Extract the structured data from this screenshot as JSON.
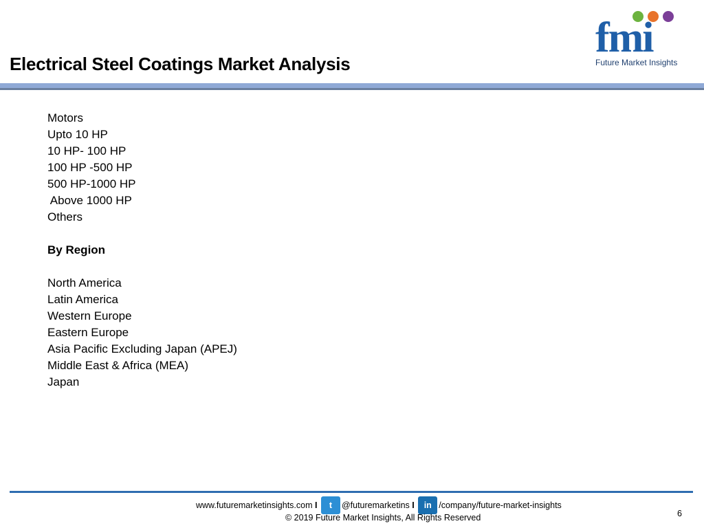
{
  "header": {
    "title": "Electrical Steel Coatings Market Analysis"
  },
  "logo": {
    "mark": "fmi",
    "name": "Future Market Insights"
  },
  "content": {
    "motors": [
      "Motors",
      "Upto 10 HP",
      "10 HP- 100 HP",
      "100 HP -500 HP",
      "500 HP-1000 HP",
      " Above 1000 HP",
      "Others"
    ],
    "region_heading": "By Region",
    "regions": [
      "North America",
      "Latin America",
      "Western Europe",
      "Eastern Europe",
      "Asia Pacific Excluding Japan (APEJ)",
      "Middle East & Africa (MEA)",
      "Japan"
    ]
  },
  "footer": {
    "website": "www.futuremarketinsights.com",
    "separator": "I",
    "twitter": "@futuremarketins",
    "linkedin": "/company/future-market-insights",
    "copyright": "© 2019 Future Market Insights, All Rights Reserved",
    "page": "6"
  }
}
